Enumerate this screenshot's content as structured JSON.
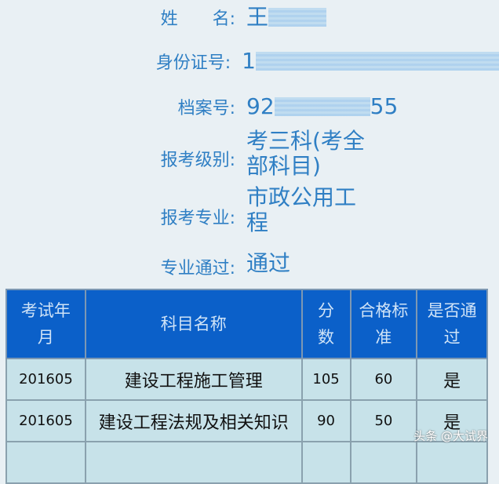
{
  "info": {
    "name": {
      "label": "姓　　名:",
      "value": "王"
    },
    "id": {
      "label": "身份证号:",
      "value": "1"
    },
    "file": {
      "label": "档案号:",
      "value_start": "92",
      "value_end": "55"
    },
    "level": {
      "label": "报考级别:",
      "value": "考三科(考全部科目)"
    },
    "major": {
      "label": "报考专业:",
      "value": "市政公用工程"
    },
    "pass": {
      "label": "专业通过:",
      "value": "通过"
    }
  },
  "table": {
    "headers": [
      "考试年月",
      "科目名称",
      "分数",
      "合格标准",
      "是否通过"
    ],
    "rows": [
      [
        "201605",
        "建设工程施工管理",
        "105",
        "60",
        "是"
      ],
      [
        "201605",
        "建设工程法规及相关知识",
        "90",
        "50",
        "是"
      ]
    ]
  },
  "watermark": "头条 @大试界",
  "colors": {
    "label": "#2f7fc4",
    "header": "#0b60c9",
    "row": "#c7e2e9"
  }
}
